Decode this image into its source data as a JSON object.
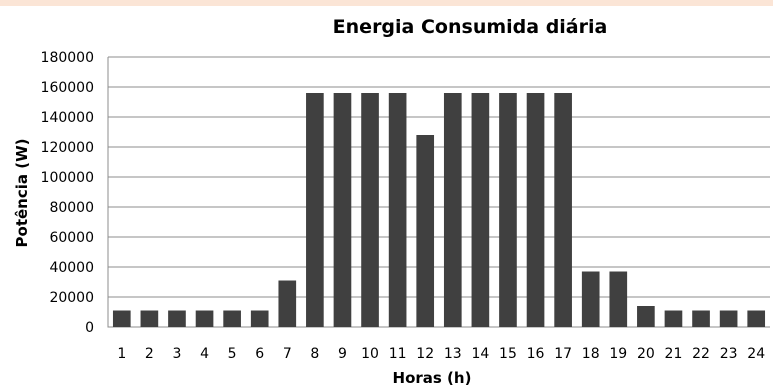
{
  "chart_data": {
    "type": "bar",
    "title": "Energia Consumida diária",
    "xlabel": "Horas (h)",
    "ylabel": "Potência (W)",
    "categories": [
      "1",
      "2",
      "3",
      "4",
      "5",
      "6",
      "7",
      "8",
      "9",
      "10",
      "11",
      "12",
      "13",
      "14",
      "15",
      "16",
      "17",
      "18",
      "19",
      "20",
      "21",
      "22",
      "23",
      "24"
    ],
    "values": [
      11000,
      11000,
      11000,
      11000,
      11000,
      11000,
      31000,
      156000,
      156000,
      156000,
      156000,
      128000,
      156000,
      156000,
      156000,
      156000,
      156000,
      37000,
      37000,
      14000,
      11000,
      11000,
      11000,
      11000
    ],
    "yticks": [
      "0",
      "20000",
      "40000",
      "60000",
      "80000",
      "100000",
      "120000",
      "140000",
      "160000",
      "180000"
    ],
    "ylim": [
      0,
      180000
    ],
    "grid": true,
    "legend": "none",
    "colors": {
      "bar": "#404040",
      "grid": "#8c8c8c",
      "top_strip": "#fbe5d6"
    }
  }
}
